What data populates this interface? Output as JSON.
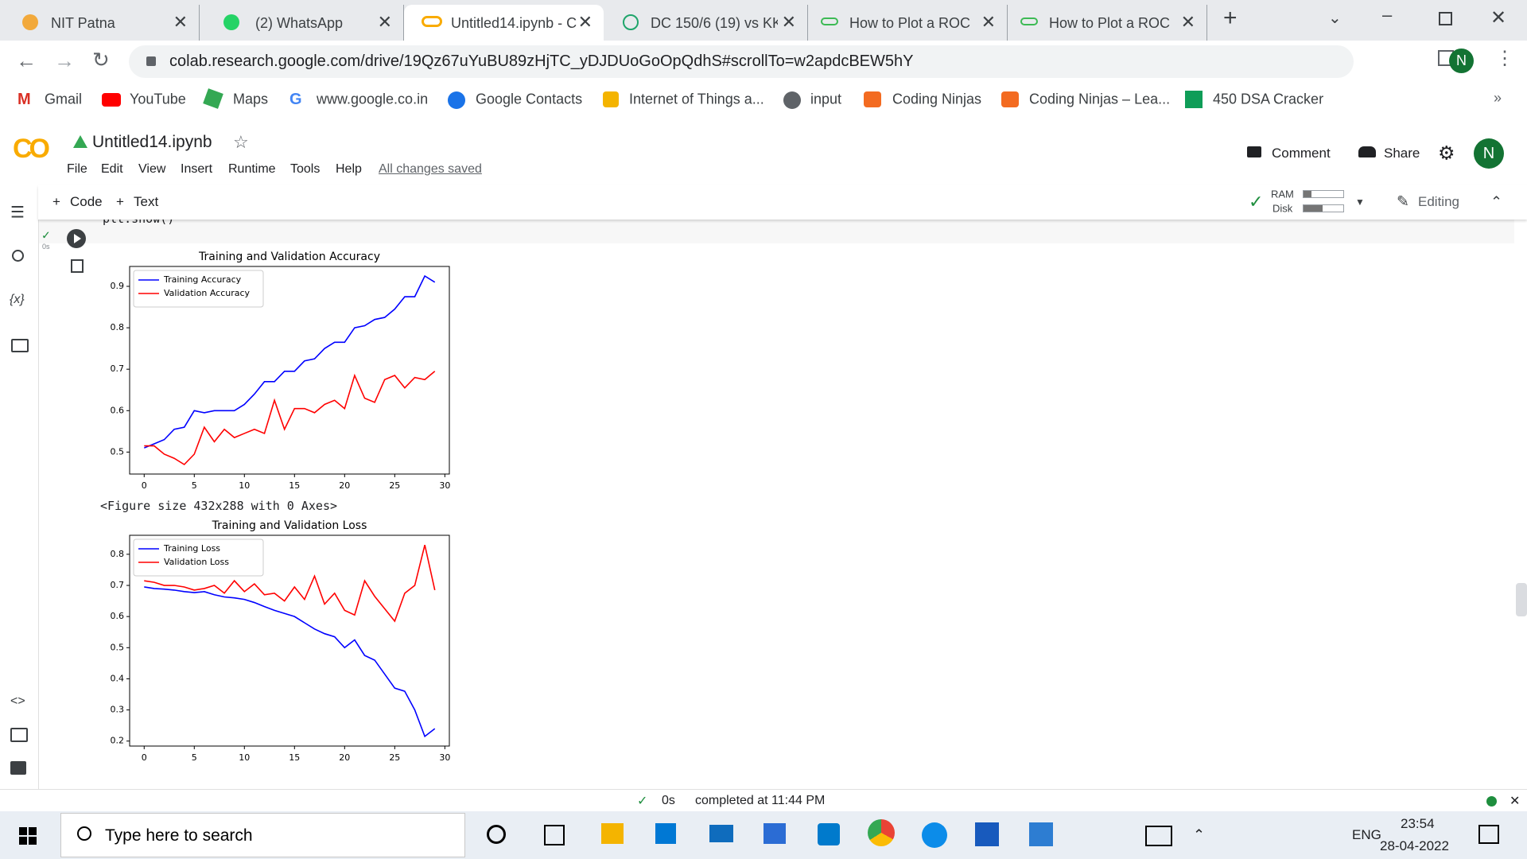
{
  "browser": {
    "tabs": [
      "NIT Patna",
      "(2) WhatsApp",
      "Untitled14.ipynb - C",
      "DC 150/6 (19) vs KK",
      "How to Plot a ROC",
      "How to Plot a ROC"
    ],
    "url": "colab.research.google.com/drive/19Qz67uYuBU89zHjTC_yDJDUoGoOpQdhS#scrollTo=w2apdcBEW5hY",
    "bookmarks": [
      "Gmail",
      "YouTube",
      "Maps",
      "www.google.co.in",
      "Google Contacts",
      "Internet of Things a...",
      "input",
      "Coding Ninjas",
      "Coding Ninjas – Lea...",
      "450 DSA Cracker"
    ],
    "avatar": "N"
  },
  "notebook": {
    "title": "Untitled14.ipynb",
    "menu": [
      "File",
      "Edit",
      "View",
      "Insert",
      "Runtime",
      "Tools",
      "Help"
    ],
    "saved": "All changes saved",
    "comment": "Comment",
    "share": "Share",
    "avatar": "N",
    "add_code": "Code",
    "add_text": "Text",
    "ram": "RAM",
    "disk": "Disk",
    "editing": "Editing",
    "sidebar_variables": "{x}",
    "cell": {
      "run_time": "0s",
      "code": "plt.show()",
      "output": "<Figure size 432x288 with 0 Axes>"
    }
  },
  "chart_data": [
    {
      "type": "line",
      "title": "Training and Validation Accuracy",
      "x": [
        0,
        1,
        2,
        3,
        4,
        5,
        6,
        7,
        8,
        9,
        10,
        11,
        12,
        13,
        14,
        15,
        16,
        17,
        18,
        19,
        20,
        21,
        22,
        23,
        24,
        25,
        26,
        27,
        28,
        29
      ],
      "series": [
        {
          "name": "Training Accuracy",
          "color": "#0000ff",
          "values": [
            0.51,
            0.52,
            0.53,
            0.555,
            0.56,
            0.6,
            0.595,
            0.6,
            0.6,
            0.6,
            0.615,
            0.64,
            0.67,
            0.67,
            0.695,
            0.695,
            0.72,
            0.725,
            0.75,
            0.765,
            0.765,
            0.8,
            0.805,
            0.82,
            0.825,
            0.845,
            0.875,
            0.875,
            0.925,
            0.91
          ]
        },
        {
          "name": "Validation Accuracy",
          "color": "#ff0000",
          "values": [
            0.515,
            0.515,
            0.495,
            0.485,
            0.47,
            0.495,
            0.56,
            0.525,
            0.555,
            0.535,
            0.545,
            0.555,
            0.545,
            0.625,
            0.555,
            0.605,
            0.605,
            0.595,
            0.615,
            0.625,
            0.605,
            0.685,
            0.63,
            0.62,
            0.675,
            0.685,
            0.655,
            0.68,
            0.675,
            0.695
          ]
        }
      ],
      "xlim": [
        -1.45,
        30.45
      ],
      "xticks": [
        0,
        5,
        10,
        15,
        20,
        25,
        30
      ],
      "ylim": [
        0.447,
        0.948
      ],
      "yticks": [
        0.5,
        0.6,
        0.7,
        0.8,
        0.9
      ],
      "grid": false,
      "legend": "upper left"
    },
    {
      "type": "line",
      "title": "Training and Validation Loss",
      "x": [
        0,
        1,
        2,
        3,
        4,
        5,
        6,
        7,
        8,
        9,
        10,
        11,
        12,
        13,
        14,
        15,
        16,
        17,
        18,
        19,
        20,
        21,
        22,
        23,
        24,
        25,
        26,
        27,
        28,
        29
      ],
      "series": [
        {
          "name": "Training Loss",
          "color": "#0000ff",
          "values": [
            0.695,
            0.69,
            0.688,
            0.685,
            0.68,
            0.677,
            0.68,
            0.67,
            0.663,
            0.66,
            0.655,
            0.645,
            0.632,
            0.62,
            0.61,
            0.6,
            0.58,
            0.56,
            0.545,
            0.535,
            0.5,
            0.525,
            0.475,
            0.46,
            0.415,
            0.37,
            0.36,
            0.3,
            0.215,
            0.24
          ]
        },
        {
          "name": "Validation Loss",
          "color": "#ff0000",
          "values": [
            0.715,
            0.71,
            0.7,
            0.7,
            0.695,
            0.685,
            0.69,
            0.7,
            0.675,
            0.715,
            0.68,
            0.705,
            0.67,
            0.675,
            0.65,
            0.695,
            0.655,
            0.73,
            0.64,
            0.675,
            0.62,
            0.605,
            0.715,
            0.665,
            0.625,
            0.585,
            0.675,
            0.7,
            0.83,
            0.685
          ]
        }
      ],
      "xlim": [
        -1.45,
        30.45
      ],
      "xticks": [
        0,
        5,
        10,
        15,
        20,
        25,
        30
      ],
      "ylim": [
        0.184,
        0.861
      ],
      "yticks": [
        0.2,
        0.3,
        0.4,
        0.5,
        0.6,
        0.7,
        0.8
      ],
      "grid": false,
      "legend": "upper left"
    }
  ],
  "status_bar": {
    "time": "0s",
    "message": "completed at 11:44 PM"
  },
  "taskbar": {
    "search": "Type here to search",
    "language": "ENG",
    "time": "23:54",
    "date": "28-04-2022"
  }
}
